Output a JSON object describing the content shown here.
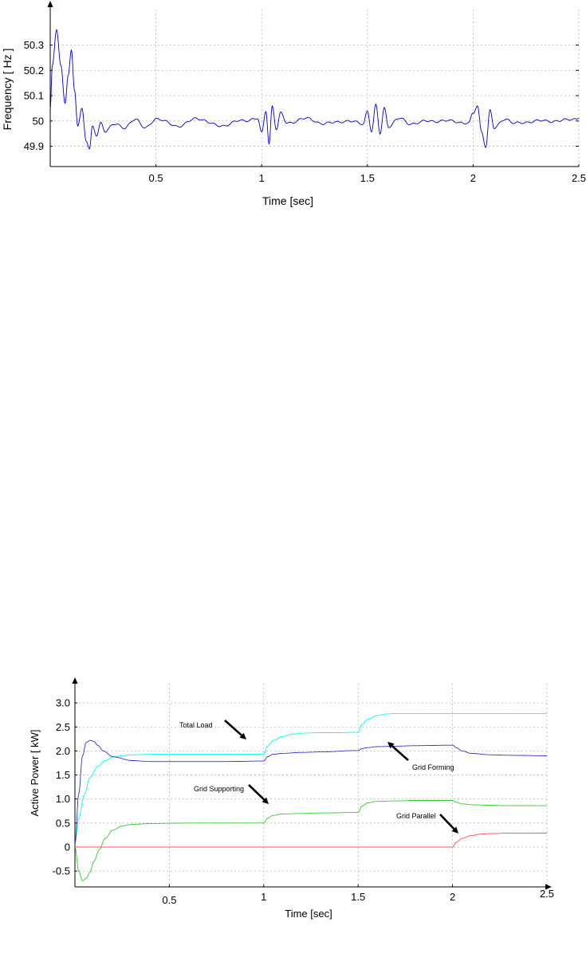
{
  "chart_data": [
    {
      "type": "line",
      "title": "",
      "xlabel": "Time [sec]",
      "ylabel": "Frequency  [ Hz ]",
      "xlim": [
        0,
        2.5
      ],
      "ylim": [
        49.82,
        50.44
      ],
      "xticks": [
        0.5,
        1,
        1.5,
        2,
        2.5
      ],
      "xtick_labels": [
        "0.5",
        "1",
        "1.5",
        "2",
        "2.5"
      ],
      "yticks": [
        49.9,
        50,
        50.1,
        50.2,
        50.3
      ],
      "ytick_labels": [
        "49.9",
        "50",
        "50.1",
        "50.2",
        "50.3"
      ],
      "grid": true,
      "series": [
        {
          "color": "#0000cc",
          "x": [
            0,
            0.01,
            0.03,
            0.05,
            0.07,
            0.085,
            0.1,
            0.115,
            0.13,
            0.15,
            0.17,
            0.185,
            0.2,
            0.22,
            0.24,
            0.26,
            0.3,
            0.35,
            0.4,
            0.45,
            0.5,
            0.6,
            0.7,
            0.8,
            0.9,
            0.98,
            1.0,
            1.02,
            1.035,
            1.05,
            1.07,
            1.09,
            1.12,
            1.2,
            1.3,
            1.4,
            1.48,
            1.5,
            1.52,
            1.54,
            1.56,
            1.58,
            1.6,
            1.65,
            1.7,
            1.8,
            1.9,
            1.98,
            2.0,
            2.02,
            2.04,
            2.06,
            2.08,
            2.1,
            2.15,
            2.2,
            2.3,
            2.4,
            2.5
          ],
          "y": [
            50.05,
            50.22,
            50.36,
            50.22,
            50.07,
            50.18,
            50.28,
            50.12,
            49.98,
            50.05,
            49.92,
            49.89,
            49.98,
            49.94,
            49.99,
            49.96,
            49.99,
            49.97,
            50.01,
            49.97,
            50.01,
            49.98,
            50.01,
            49.98,
            50.0,
            50.01,
            49.95,
            50.04,
            49.91,
            50.06,
            49.97,
            50.03,
            49.99,
            50.01,
            49.99,
            50.0,
            49.99,
            50.04,
            49.96,
            50.06,
            49.95,
            50.05,
            49.98,
            50.01,
            49.99,
            50.0,
            50.0,
            49.99,
            50.03,
            50.06,
            49.96,
            49.9,
            50.04,
            49.97,
            50.01,
            49.99,
            50.0,
            50.0,
            50.01
          ]
        }
      ]
    },
    {
      "type": "line",
      "title": "",
      "xlabel": "Time [sec]",
      "ylabel": "Active Power  [ kW]",
      "xlim": [
        0,
        2.5
      ],
      "ylim": [
        -0.83,
        3.4
      ],
      "xticks": [
        0.5,
        1,
        1.5,
        2,
        2.5
      ],
      "xtick_labels": [
        "0.5",
        "1",
        "1.5",
        "2",
        "2.5"
      ],
      "yticks": [
        -0.5,
        0,
        0.5,
        1.0,
        1.5,
        2.0,
        2.5,
        3.0
      ],
      "ytick_labels": [
        "-0.5",
        "0",
        "0.5",
        "1.0",
        "1.5",
        "2.0",
        "2.5",
        "3.0"
      ],
      "grid": true,
      "series": [
        {
          "name": "Total Load",
          "color": "#00ffff",
          "x": [
            0,
            0.02,
            0.05,
            0.08,
            0.12,
            0.16,
            0.2,
            0.25,
            0.3,
            0.4,
            0.6,
            0.8,
            1.0,
            1.02,
            1.05,
            1.1,
            1.15,
            1.2,
            1.3,
            1.4,
            1.5,
            1.52,
            1.55,
            1.6,
            1.65,
            1.7,
            1.8,
            2.0,
            2.5
          ],
          "y": [
            0.1,
            0.6,
            1.1,
            1.45,
            1.68,
            1.8,
            1.87,
            1.9,
            1.92,
            1.93,
            1.93,
            1.93,
            1.93,
            2.1,
            2.22,
            2.3,
            2.35,
            2.37,
            2.38,
            2.38,
            2.39,
            2.55,
            2.66,
            2.74,
            2.77,
            2.78,
            2.78,
            2.78,
            2.78
          ]
        },
        {
          "name": "Grid Forming",
          "color": "#3333cc",
          "x": [
            0,
            0.02,
            0.04,
            0.06,
            0.08,
            0.1,
            0.12,
            0.15,
            0.2,
            0.3,
            0.4,
            0.6,
            0.8,
            1.0,
            1.02,
            1.05,
            1.1,
            1.2,
            1.3,
            1.5,
            1.52,
            1.55,
            1.6,
            1.7,
            1.8,
            2.0,
            2.02,
            2.05,
            2.1,
            2.2,
            2.3,
            2.5
          ],
          "y": [
            0.05,
            1.1,
            1.9,
            2.18,
            2.22,
            2.2,
            2.12,
            2.0,
            1.88,
            1.8,
            1.78,
            1.78,
            1.78,
            1.79,
            1.88,
            1.93,
            1.95,
            1.97,
            1.98,
            2.01,
            2.05,
            2.07,
            2.09,
            2.1,
            2.11,
            2.12,
            2.07,
            2.0,
            1.95,
            1.92,
            1.91,
            1.9
          ]
        },
        {
          "name": "Grid Supporting",
          "color": "#33cc33",
          "x": [
            0,
            0.02,
            0.04,
            0.06,
            0.08,
            0.1,
            0.13,
            0.16,
            0.2,
            0.25,
            0.3,
            0.4,
            0.6,
            0.8,
            1.0,
            1.02,
            1.05,
            1.1,
            1.2,
            1.3,
            1.5,
            1.52,
            1.55,
            1.6,
            1.7,
            1.8,
            2.0,
            2.02,
            2.05,
            2.1,
            2.2,
            2.3,
            2.5
          ],
          "y": [
            0,
            -0.5,
            -0.7,
            -0.65,
            -0.52,
            -0.3,
            -0.05,
            0.18,
            0.35,
            0.44,
            0.47,
            0.49,
            0.5,
            0.5,
            0.5,
            0.6,
            0.66,
            0.69,
            0.7,
            0.71,
            0.72,
            0.85,
            0.92,
            0.95,
            0.96,
            0.97,
            0.97,
            0.93,
            0.9,
            0.88,
            0.87,
            0.86,
            0.86
          ]
        },
        {
          "name": "Grid Parallel",
          "color": "#ff5555",
          "x": [
            0,
            0.5,
            1.0,
            1.5,
            2.0,
            2.02,
            2.05,
            2.1,
            2.15,
            2.2,
            2.3,
            2.5
          ],
          "y": [
            0,
            0,
            0,
            0,
            0,
            0.1,
            0.18,
            0.24,
            0.27,
            0.28,
            0.29,
            0.29
          ]
        }
      ],
      "annotations": [
        {
          "text": "Total Load",
          "series": "Total Load"
        },
        {
          "text": "Grid Forming",
          "series": "Grid Forming"
        },
        {
          "text": "Grid Supporting",
          "series": "Grid Supporting"
        },
        {
          "text": "Grid Parallel",
          "series": "Grid Parallel"
        }
      ]
    }
  ]
}
